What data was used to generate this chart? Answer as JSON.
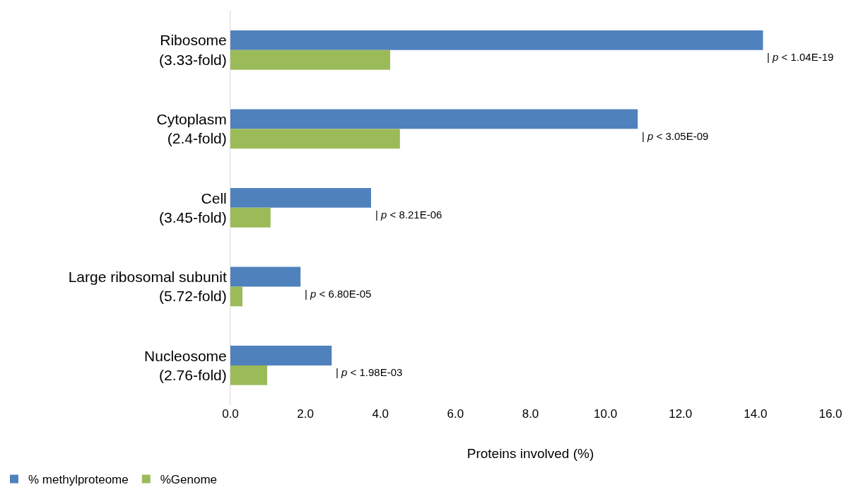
{
  "chart_data": {
    "type": "bar",
    "orientation": "horizontal",
    "xlabel": "Proteins involved (%)",
    "categories": [
      "Ribosome\n(3.33-fold)",
      "Cytoplasm\n(2.4-fold)",
      "Cell\n(3.45-fold)",
      "Large ribosomal subunit\n(5.72-fold)",
      "Nucleosome\n(2.76-fold)"
    ],
    "series": [
      {
        "name": "% methylproteome",
        "color": "#4f81bd",
        "values": [
          14.2,
          10.86,
          3.75,
          1.87,
          2.7
        ]
      },
      {
        "name": "%Genome",
        "color": "#9bbb59",
        "values": [
          4.26,
          4.52,
          1.07,
          0.32,
          0.98
        ]
      }
    ],
    "xlim": [
      0,
      16
    ],
    "xticks": [
      {
        "value": 0,
        "label": "0.0"
      },
      {
        "value": 2,
        "label": "2.0"
      },
      {
        "value": 4,
        "label": "4.0"
      },
      {
        "value": 6,
        "label": "6.0"
      },
      {
        "value": 8,
        "label": "8.0"
      },
      {
        "value": 10,
        "label": "10.0"
      },
      {
        "value": 12,
        "label": "12.0"
      },
      {
        "value": 14,
        "label": "14.0"
      },
      {
        "value": 16,
        "label": "16.0"
      }
    ],
    "annotations": [
      {
        "text": "| p < 1.04E-19",
        "x": 14.2,
        "y": "Ribosome\n(3.33-fold)"
      },
      {
        "text": "| p < 3.05E-09",
        "x": 10.86,
        "y": "Cytoplasm\n(2.4-fold)"
      },
      {
        "text": "| p < 8.21E-06",
        "x": 3.75,
        "y": "Cell\n(3.45-fold)"
      },
      {
        "text": "| p < 6.80E-05",
        "x": 1.87,
        "y": "Large ribosomal subunit\n(5.72-fold)"
      },
      {
        "text": "| p < 1.98E-03",
        "x": 2.7,
        "y": "Nucleosome\n(2.76-fold)"
      }
    ],
    "legend": "bottom left"
  }
}
